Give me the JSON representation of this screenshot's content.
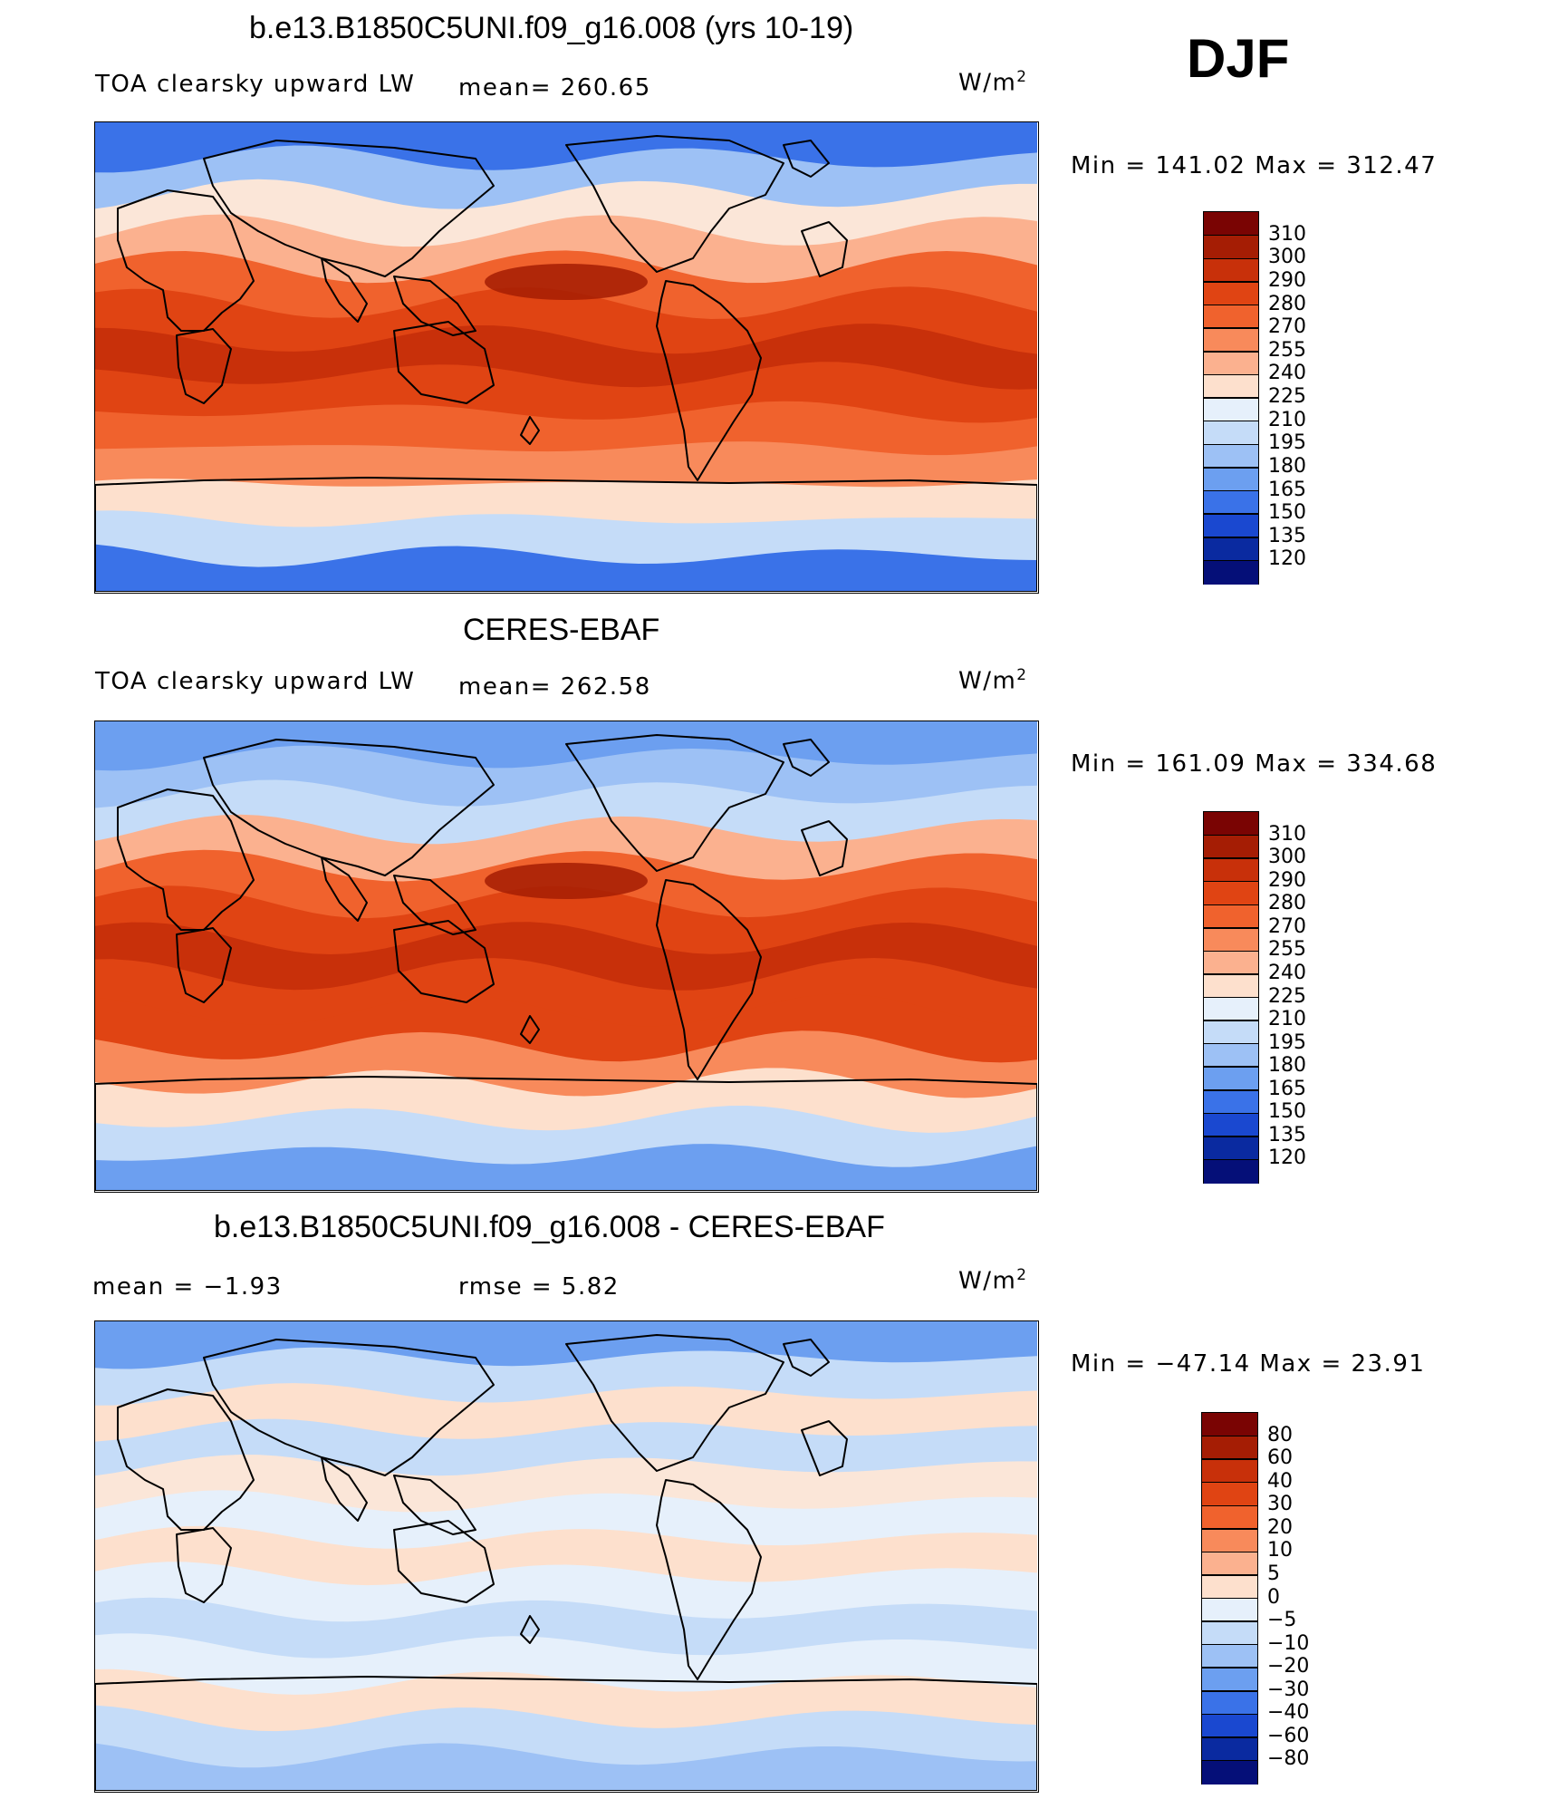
{
  "season": "DJF",
  "panels": [
    {
      "title": "b.e13.B1850C5UNI.f09_g16.008 (yrs 10-19)",
      "variable": "TOA clearsky upward LW",
      "stat": "mean=  260.65",
      "units": "W/m",
      "units_exp": "2",
      "minmax": "Min  =  141.02  Max  =  312.47",
      "palette": "abs"
    },
    {
      "title": "CERES-EBAF",
      "variable": "TOA clearsky upward LW",
      "stat": "mean=  262.58",
      "units": "W/m",
      "units_exp": "2",
      "minmax": "Min  =  161.09  Max  =  334.68",
      "palette": "abs"
    },
    {
      "title": "b.e13.B1850C5UNI.f09_g16.008 - CERES-EBAF",
      "variable": "mean  =    −1.93",
      "stat": "rmse  =     5.82",
      "units": "W/m",
      "units_exp": "2",
      "minmax": "Min  =  −47.14  Max  =    23.91",
      "palette": "diff"
    }
  ],
  "colorbars": {
    "abs": {
      "labels": [
        "310",
        "300",
        "290",
        "280",
        "270",
        "255",
        "240",
        "225",
        "210",
        "195",
        "180",
        "165",
        "150",
        "135",
        "120"
      ],
      "colors": [
        "#7a0403",
        "#a51d04",
        "#c8300a",
        "#e04413",
        "#f0622d",
        "#f88a5b",
        "#fbb18f",
        "#fde0cd",
        "#e6f0fb",
        "#c5dcf8",
        "#9dc1f5",
        "#6c9ff0",
        "#3a72e8",
        "#1a48d0",
        "#0a2aa0",
        "#050f78"
      ]
    },
    "diff": {
      "labels": [
        "80",
        "60",
        "40",
        "30",
        "20",
        "10",
        "5",
        "0",
        "−5",
        "−10",
        "−20",
        "−30",
        "−40",
        "−60",
        "−80"
      ],
      "colors": [
        "#7a0403",
        "#a51d04",
        "#c8300a",
        "#e04413",
        "#f0622d",
        "#f88a5b",
        "#fbb18f",
        "#fde0cd",
        "#e6f0fb",
        "#c5dcf8",
        "#9dc1f5",
        "#6c9ff0",
        "#3a72e8",
        "#1a48d0",
        "#0a2aa0",
        "#050f78"
      ]
    }
  },
  "map_fields": {
    "abs_model": {
      "bands": [
        "#3a72e8",
        "#9dc1f5",
        "#fbe6d8",
        "#fbb18f",
        "#f0622d",
        "#e04413",
        "#c8300a",
        "#e04413",
        "#f0622d",
        "#f88a5b",
        "#fde0cd",
        "#c5dcf8",
        "#3a72e8"
      ]
    },
    "abs_obs": {
      "bands": [
        "#6c9ff0",
        "#9dc1f5",
        "#c5dcf8",
        "#fbb18f",
        "#f0622d",
        "#e04413",
        "#c8300a",
        "#e04413",
        "#e04413",
        "#f88a5b",
        "#fde0cd",
        "#c5dcf8",
        "#6c9ff0"
      ]
    },
    "diff": {
      "bands": [
        "#6c9ff0",
        "#c5dcf8",
        "#fde0cd",
        "#c5dcf8",
        "#fbe6d8",
        "#e6f0fb",
        "#fde0cd",
        "#e6f0fb",
        "#c5dcf8",
        "#e6f0fb",
        "#fde0cd",
        "#c5dcf8",
        "#9dc1f5"
      ]
    }
  }
}
